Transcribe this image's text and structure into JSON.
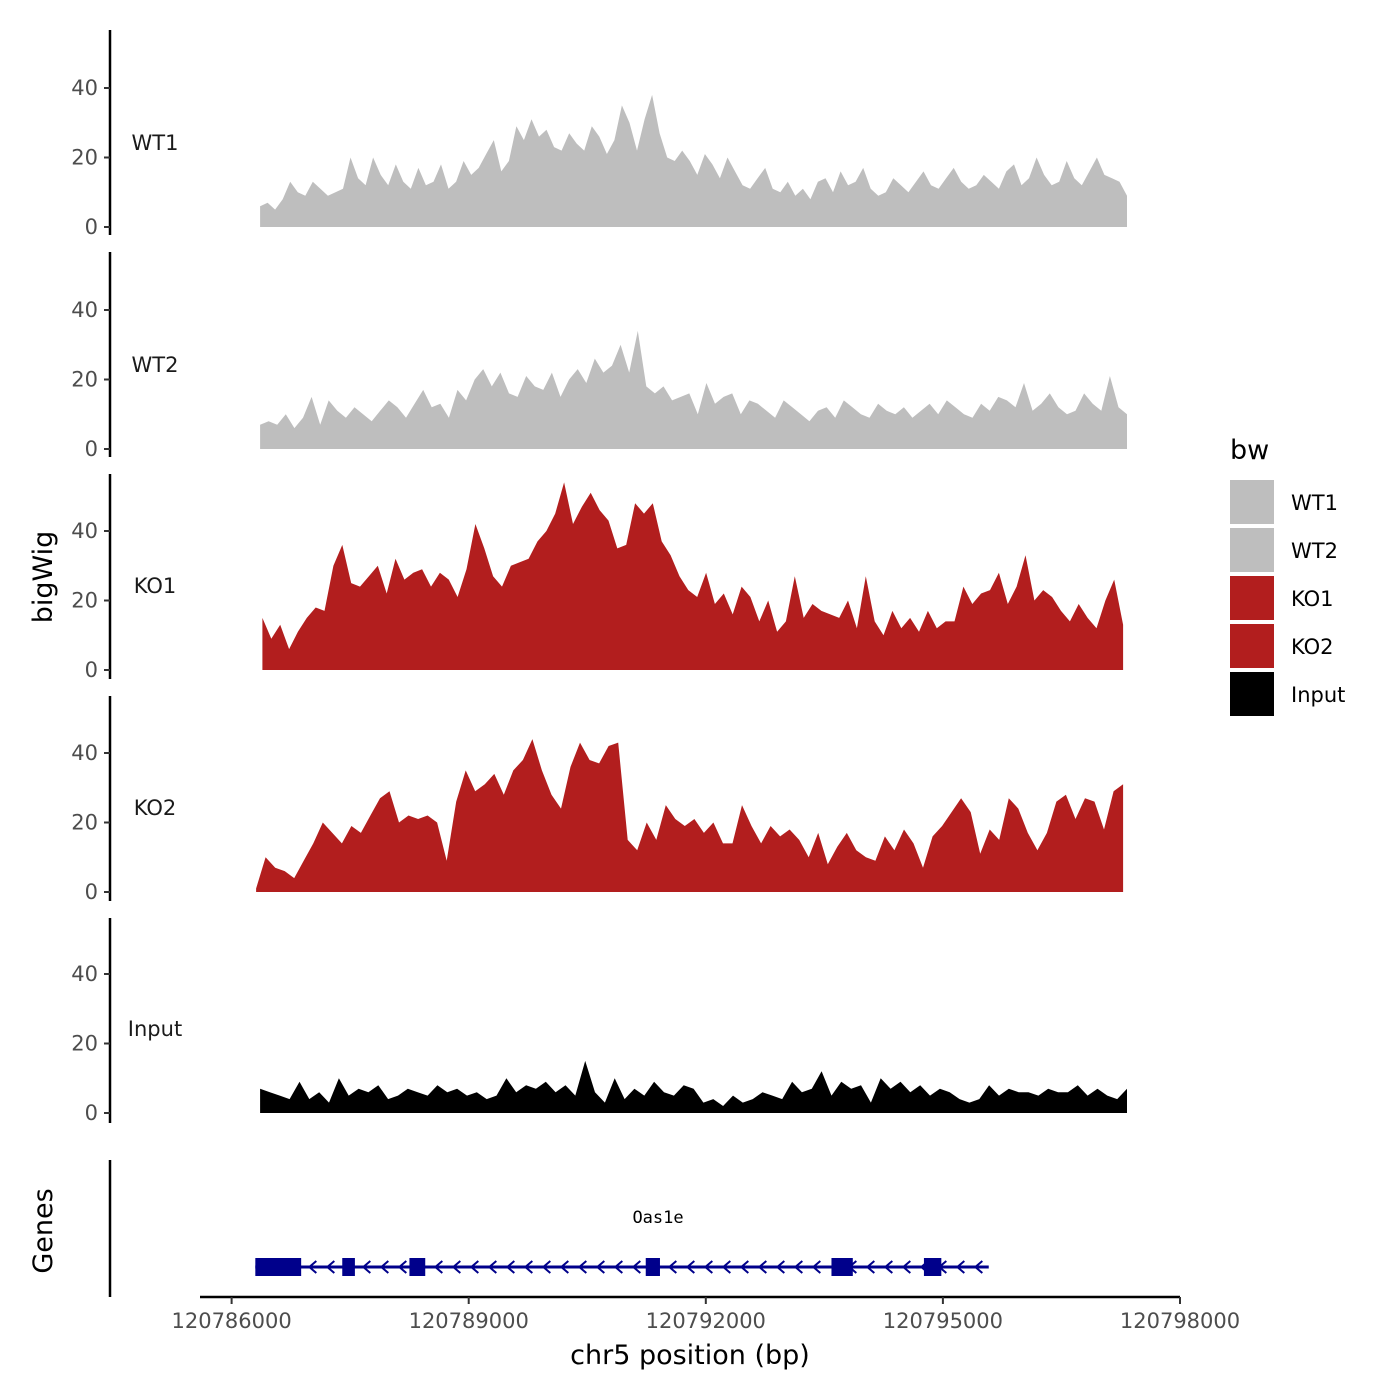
{
  "chart_data": {
    "type": "area",
    "y_axis_title": "bigWig",
    "genes_axis_title": "Genes",
    "x_axis_title": "chr5 position (bp)",
    "chromosome": "chr5",
    "xlim": [
      120785600,
      120798000
    ],
    "x_ticks": [
      120786000,
      120789000,
      120792000,
      120795000,
      120798000
    ],
    "x_tick_labels": [
      "120786000",
      "120789000",
      "120792000",
      "120795000",
      "120798000"
    ],
    "ylim": [
      0,
      56
    ],
    "y_ticks": [
      0,
      20,
      40
    ],
    "y_tick_labels": [
      "0",
      "20",
      "40"
    ],
    "legend": {
      "title": "bw",
      "position": "right",
      "items": [
        {
          "label": "WT1",
          "color": "#bebebe"
        },
        {
          "label": "WT2",
          "color": "#bebebe"
        },
        {
          "label": "KO1",
          "color": "#b21e1e"
        },
        {
          "label": "KO2",
          "color": "#b21e1e"
        },
        {
          "label": "Input",
          "color": "#000000"
        }
      ]
    },
    "series": [
      {
        "name": "WT1",
        "color": "#bebebe",
        "x_start": 120786360,
        "x_end": 120797330,
        "values": [
          6,
          7,
          5,
          8,
          13,
          10,
          9,
          13,
          11,
          9,
          10,
          11,
          20,
          14,
          12,
          20,
          15,
          12,
          18,
          13,
          11,
          17,
          12,
          13,
          18,
          11,
          13,
          19,
          15,
          17,
          21,
          25,
          16,
          19,
          29,
          25,
          31,
          26,
          28,
          23,
          22,
          27,
          24,
          22,
          29,
          26,
          21,
          25,
          35,
          30,
          22,
          31,
          38,
          27,
          20,
          19,
          22,
          19,
          15,
          21,
          18,
          14,
          20,
          16,
          12,
          11,
          14,
          17,
          11,
          10,
          13,
          9,
          11,
          8,
          13,
          14,
          10,
          16,
          12,
          13,
          17,
          11,
          9,
          10,
          14,
          12,
          10,
          13,
          16,
          12,
          11,
          14,
          17,
          13,
          11,
          12,
          15,
          13,
          11,
          16,
          18,
          12,
          14,
          20,
          15,
          12,
          13,
          19,
          14,
          12,
          16,
          20,
          15,
          14,
          13,
          9
        ]
      },
      {
        "name": "WT2",
        "color": "#bebebe",
        "x_start": 120786360,
        "x_end": 120797330,
        "values": [
          7,
          8,
          7,
          10,
          6,
          9,
          15,
          7,
          14,
          11,
          9,
          12,
          10,
          8,
          11,
          14,
          12,
          9,
          13,
          17,
          12,
          13,
          9,
          17,
          14,
          20,
          23,
          18,
          22,
          16,
          15,
          21,
          18,
          17,
          22,
          15,
          20,
          23,
          19,
          26,
          22,
          24,
          30,
          22,
          34,
          18,
          16,
          18,
          14,
          15,
          16,
          10,
          19,
          13,
          15,
          16,
          10,
          14,
          13,
          11,
          9,
          14,
          12,
          10,
          8,
          11,
          12,
          9,
          14,
          12,
          10,
          9,
          13,
          11,
          10,
          12,
          9,
          11,
          13,
          10,
          14,
          12,
          10,
          9,
          13,
          11,
          15,
          14,
          12,
          19,
          11,
          13,
          16,
          12,
          10,
          11,
          16,
          13,
          11,
          21,
          12,
          10
        ]
      },
      {
        "name": "KO1",
        "color": "#b21e1e",
        "x_start": 120786390,
        "x_end": 120797280,
        "values": [
          15,
          9,
          13,
          6,
          11,
          15,
          18,
          17,
          30,
          36,
          25,
          24,
          27,
          30,
          22,
          32,
          26,
          28,
          29,
          24,
          28,
          26,
          21,
          29,
          42,
          35,
          27,
          24,
          30,
          31,
          32,
          37,
          40,
          45,
          54,
          42,
          47,
          51,
          46,
          43,
          35,
          36,
          48,
          45,
          48,
          37,
          33,
          27,
          23,
          21,
          28,
          19,
          22,
          16,
          24,
          21,
          14,
          20,
          11,
          14,
          27,
          15,
          19,
          17,
          16,
          15,
          20,
          12,
          27,
          14,
          10,
          17,
          12,
          15,
          11,
          17,
          12,
          14,
          14,
          24,
          19,
          22,
          23,
          28,
          19,
          24,
          33,
          20,
          23,
          21,
          17,
          14,
          19,
          15,
          12,
          20,
          26,
          13
        ]
      },
      {
        "name": "KO2",
        "color": "#b21e1e",
        "x_start": 120786310,
        "x_end": 120797280,
        "values": [
          1,
          10,
          7,
          6,
          4,
          9,
          14,
          20,
          17,
          14,
          19,
          17,
          22,
          27,
          29,
          20,
          22,
          21,
          22,
          20,
          9,
          26,
          35,
          29,
          31,
          34,
          28,
          35,
          38,
          44,
          35,
          28,
          24,
          36,
          43,
          38,
          37,
          42,
          43,
          15,
          12,
          20,
          15,
          25,
          21,
          19,
          21,
          17,
          20,
          14,
          14,
          25,
          19,
          14,
          19,
          16,
          18,
          15,
          10,
          17,
          8,
          13,
          17,
          12,
          10,
          9,
          16,
          12,
          18,
          14,
          7,
          16,
          19,
          23,
          27,
          23,
          11,
          18,
          15,
          27,
          24,
          17,
          12,
          17,
          26,
          28,
          21,
          27,
          26,
          18,
          29,
          31
        ]
      },
      {
        "name": "Input",
        "color": "#000000",
        "x_start": 120786360,
        "x_end": 120797330,
        "values": [
          7,
          6,
          5,
          4,
          9,
          4,
          6,
          3,
          10,
          5,
          7,
          6,
          8,
          4,
          5,
          7,
          6,
          5,
          8,
          6,
          7,
          5,
          6,
          4,
          5,
          10,
          6,
          8,
          7,
          9,
          6,
          8,
          5,
          15,
          6,
          3,
          10,
          4,
          7,
          5,
          9,
          6,
          5,
          8,
          7,
          3,
          4,
          2,
          5,
          3,
          4,
          6,
          5,
          4,
          9,
          6,
          7,
          12,
          5,
          9,
          7,
          8,
          3,
          10,
          7,
          9,
          6,
          8,
          5,
          7,
          6,
          4,
          3,
          4,
          8,
          5,
          7,
          6,
          6,
          5,
          7,
          6,
          6,
          8,
          5,
          7,
          5,
          4,
          7
        ]
      }
    ],
    "gene": {
      "name": "Oas1e",
      "strand": "-",
      "start": 120786300,
      "end": 120795580,
      "exons": [
        {
          "start": 120786300,
          "end": 120786880
        },
        {
          "start": 120787400,
          "end": 120787560
        },
        {
          "start": 120788250,
          "end": 120788450
        },
        {
          "start": 120791240,
          "end": 120791420
        },
        {
          "start": 120793590,
          "end": 120793860
        },
        {
          "start": 120794760,
          "end": 120794980
        }
      ]
    }
  }
}
